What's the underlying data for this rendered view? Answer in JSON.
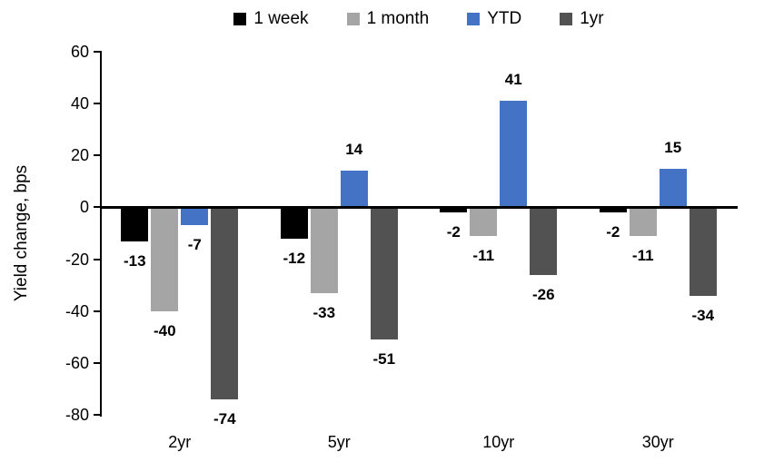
{
  "chart_data": {
    "type": "bar",
    "title": "",
    "ylabel": "Yield change, bps",
    "xlabel": "",
    "categories": [
      "2yr",
      "5yr",
      "10yr",
      "30yr"
    ],
    "series": [
      {
        "name": "1 week",
        "color": "#000000",
        "values": [
          -13,
          -12,
          -2,
          -2
        ]
      },
      {
        "name": "1 month",
        "color": "#A5A5A5",
        "values": [
          -40,
          -33,
          -11,
          -11
        ]
      },
      {
        "name": "YTD",
        "color": "#4472C4",
        "values": [
          -7,
          14,
          41,
          15
        ]
      },
      {
        "name": "1yr",
        "color": "#525252",
        "values": [
          -74,
          -51,
          -26,
          -34
        ]
      }
    ],
    "ylim": [
      -80,
      60
    ],
    "yticks": [
      60,
      40,
      20,
      0,
      -20,
      -40,
      -60,
      -80
    ],
    "grid": false,
    "legend_position": "top",
    "data_labels": true,
    "axis_color": "#000000"
  }
}
